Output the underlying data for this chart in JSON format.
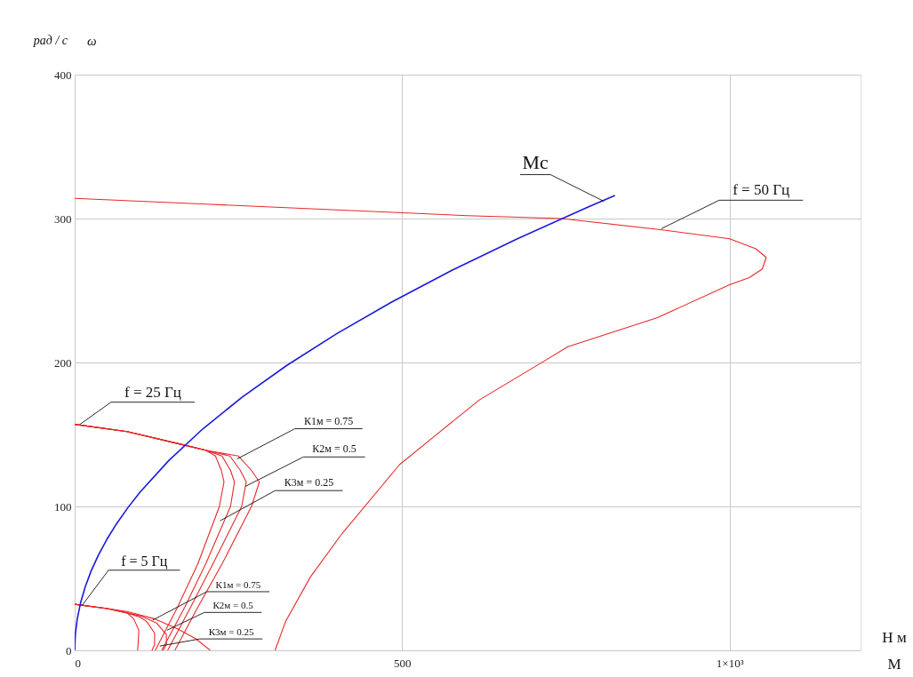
{
  "chart_data": {
    "type": "line",
    "xlabel": "М",
    "ylabel": "ω",
    "xlim": [
      0,
      1200
    ],
    "ylim": [
      0,
      400
    ],
    "xticks": [
      0,
      500,
      {
        "value": 1000,
        "label": "1×10³"
      }
    ],
    "yticks": [
      0,
      100,
      200,
      300,
      400
    ],
    "grid": true,
    "line_style": "solid",
    "marker": "none",
    "series": [
      {
        "color": "#e8282a",
        "x": [
          0,
          200,
          400,
          600,
          744,
          900,
          1000,
          1040,
          1056,
          1050,
          1030,
          1000,
          889,
          753,
          717,
          618,
          550,
          496,
          408,
          360,
          322,
          306
        ],
        "values": [
          314,
          310,
          306,
          302,
          300,
          292,
          286,
          279,
          273,
          265,
          259,
          254,
          231,
          211,
          201,
          174,
          149,
          129,
          81,
          51,
          20,
          0
        ]
      },
      {
        "color": "#e8282a",
        "x": [
          0,
          80,
          164,
          200,
          215,
          224,
          228,
          221,
          188,
          157,
          123
        ],
        "values": [
          157,
          152,
          143,
          139,
          135,
          125,
          117,
          100,
          60,
          30,
          0
        ]
      },
      {
        "color": "#e8282a",
        "x": [
          0,
          80,
          164,
          200,
          225,
          238,
          244,
          238,
          200,
          168,
          133
        ],
        "values": [
          157,
          152,
          143,
          139,
          135,
          125,
          117,
          100,
          60,
          30,
          0
        ]
      },
      {
        "color": "#e8282a",
        "x": [
          0,
          80,
          164,
          200,
          237,
          253,
          262,
          255,
          211,
          177,
          142
        ],
        "values": [
          157,
          152,
          143,
          139,
          135,
          125,
          117,
          100,
          60,
          30,
          0
        ]
      },
      {
        "color": "#e8282a",
        "x": [
          0,
          80,
          164,
          200,
          250,
          270,
          282,
          270,
          225,
          188,
          153
        ],
        "values": [
          157,
          152,
          143,
          139,
          135,
          125,
          117,
          100,
          60,
          30,
          0
        ]
      },
      {
        "color": "#e8282a",
        "x": [
          0,
          50,
          80,
          90,
          98,
          97,
          96
        ],
        "values": [
          32,
          29,
          26,
          22,
          14,
          5,
          0
        ]
      },
      {
        "color": "#e8282a",
        "x": [
          0,
          50,
          80,
          100,
          110,
          122,
          122,
          118
        ],
        "values": [
          32,
          29,
          26,
          23,
          20,
          12,
          4,
          0
        ]
      },
      {
        "color": "#e8282a",
        "x": [
          0,
          50,
          80,
          100,
          125,
          140,
          140,
          135
        ],
        "values": [
          32,
          29,
          26,
          24,
          19,
          11,
          4,
          0
        ]
      },
      {
        "color": "#e8282a",
        "x": [
          0,
          50,
          80,
          121,
          157,
          185,
          207
        ],
        "values": [
          32,
          29,
          27,
          22,
          15,
          8,
          0
        ]
      },
      {
        "color": "#1a1adb",
        "x": [
          0,
          1,
          4,
          9,
          16,
          25,
          36,
          49,
          64,
          81,
          100,
          144,
          196,
          256,
          324,
          400,
          484,
          576,
          676,
          784,
          825
        ],
        "values": [
          0,
          11,
          22,
          33,
          44,
          55,
          66,
          77,
          88,
          99,
          110,
          132,
          154,
          176,
          198,
          220,
          242,
          264,
          286,
          308,
          316
        ]
      }
    ],
    "annotations": [
      "рад / с",
      "Н м",
      {
        "text": "Мс",
        "x": 808,
        "y": 312
      },
      {
        "text": "f = 50 Гц",
        "x": 896,
        "y": 293
      },
      {
        "text": "f = 25 Гц",
        "x": 8,
        "y": 157
      },
      {
        "text": "f = 5 Гц",
        "x": 11,
        "y": 31
      },
      {
        "text": "К1м = 0.75",
        "x": 248,
        "y": 133
      },
      {
        "text": "К2м = 0.5",
        "x": 261,
        "y": 114
      },
      {
        "text": "К3м = 0.25",
        "x": 222,
        "y": 90
      },
      {
        "text": "К1м = 0.75",
        "x": 119,
        "y": 21
      },
      {
        "text": "К2м = 0.5",
        "x": 141,
        "y": 14
      },
      {
        "text": "К3м = 0.25",
        "x": 130,
        "y": 3
      }
    ]
  }
}
